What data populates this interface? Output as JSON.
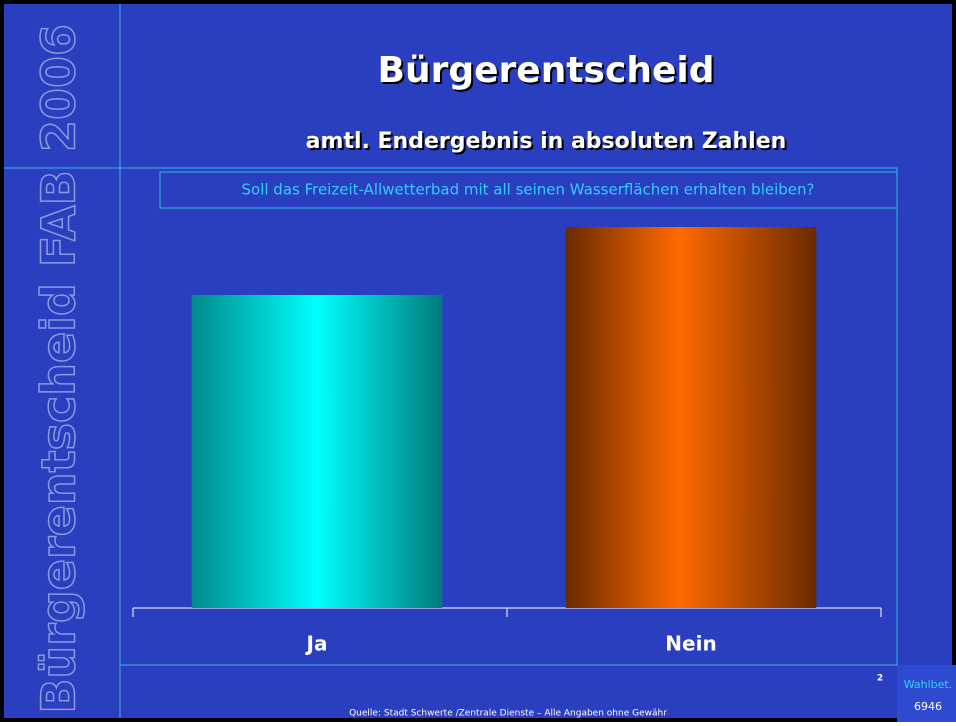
{
  "side_year": "2006",
  "side_label": "Bürgerentscheid FAB",
  "title": "Bürgerentscheid",
  "subtitle": "amtl. Endergebnis in absoluten Zahlen",
  "page_number": "2",
  "footer_box": {
    "label": "Wahlbet.",
    "value": "6946"
  },
  "source": "Quelle: Stadt Schwerte /Zentrale Dienste – Alle Angaben ohne Gewähr",
  "chart_data": {
    "type": "bar",
    "title": "Soll das Freizeit-Allwetterbad mit all seinen Wasserflächen erhalten bleiben?",
    "categories": [
      "Ja",
      "Nein"
    ],
    "series": [
      {
        "colors": [
          "#00e8f0",
          "#ff6a00"
        ],
        "values": [
          313,
          381
        ]
      }
    ],
    "ylim": [
      0,
      400
    ]
  }
}
